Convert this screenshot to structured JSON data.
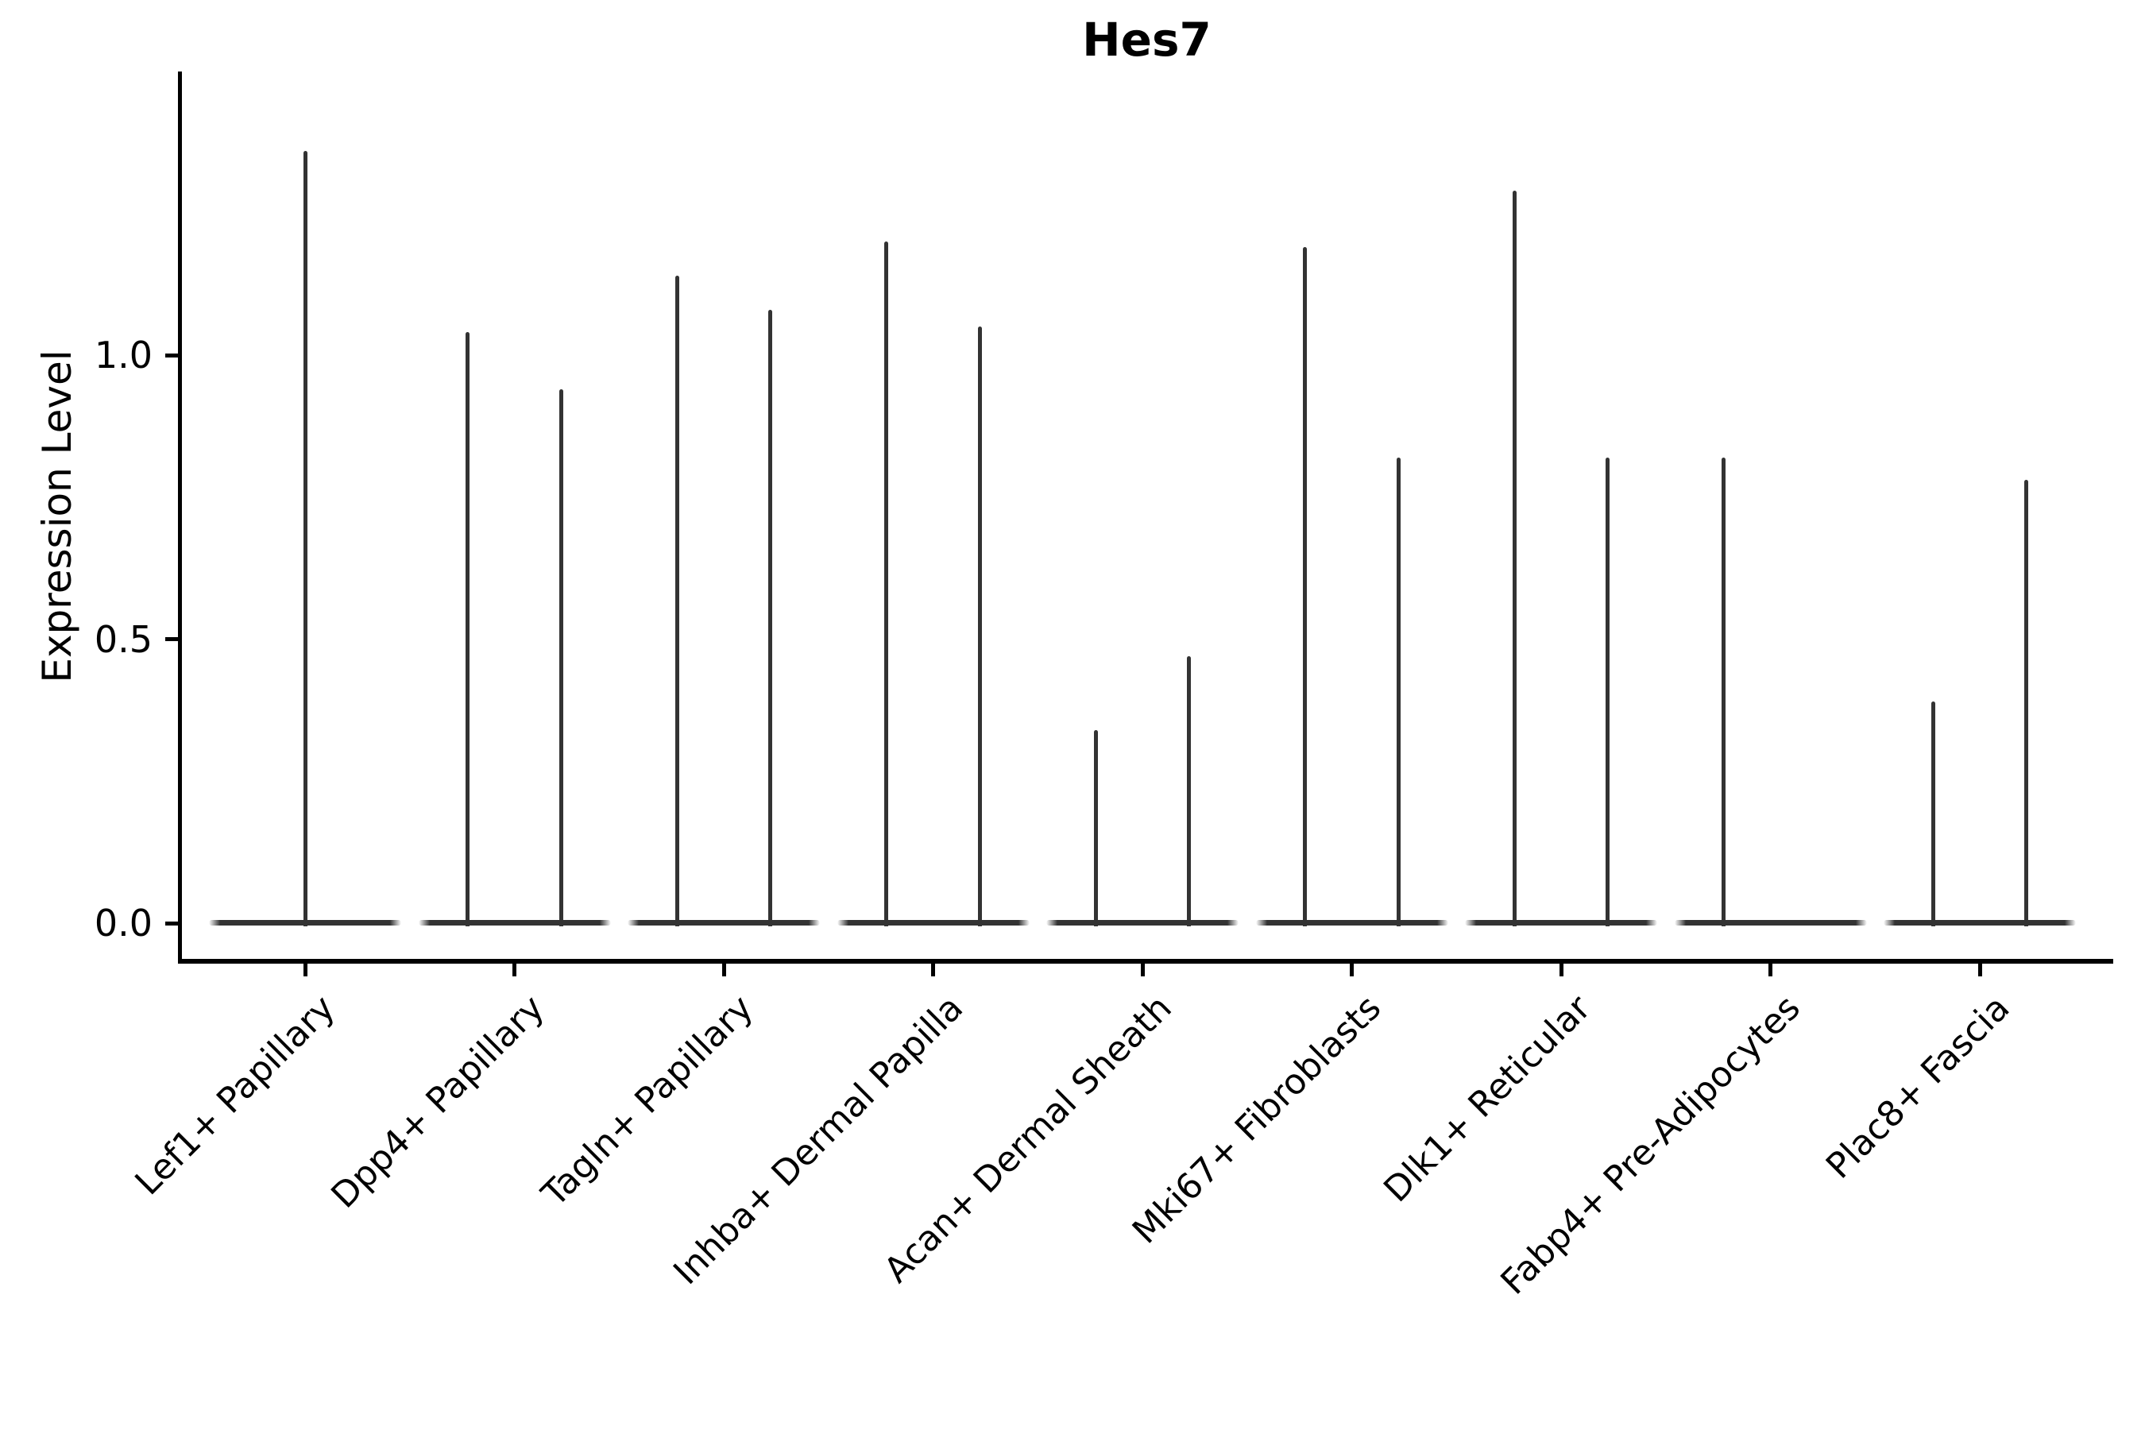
{
  "chart_data": {
    "type": "violin",
    "title": "Hes7",
    "ylabel": "Expression Level",
    "xlabel": "",
    "ytick_labels": [
      "0.0",
      "0.5",
      "1.0"
    ],
    "ytick_values": [
      0.0,
      0.5,
      1.0
    ],
    "ylim": [
      -0.07,
      1.5
    ],
    "grid": false,
    "legend": "none",
    "xtick_rotation": 45,
    "violin_color": "#333333",
    "axis_color": "#000000",
    "background_color": "#ffffff",
    "description": "Each violin has nearly all density at expression 0 (flat horizontal body) with a thin vertical spike up to its maximum value; most categories contain two violins (left/right) around the category tick.",
    "categories": [
      "Lef1+ Papillary",
      "Dpp4+ Papillary",
      "Tagln+ Papillary",
      "Inhba+ Dermal Papilla",
      "Acan+ Dermal Sheath",
      "Mki67+ Fibroblasts",
      "Dlk1+ Reticular",
      "Fabp4+ Pre-Adipocytes",
      "Plac8+ Fascia"
    ],
    "groups": [
      {
        "category": "Lef1+ Papillary",
        "violins": [
          {
            "offset": 0.0,
            "max": 1.36
          }
        ]
      },
      {
        "category": "Dpp4+ Papillary",
        "violins": [
          {
            "offset": -0.22,
            "max": 1.04
          },
          {
            "offset": 0.22,
            "max": 0.94
          }
        ]
      },
      {
        "category": "Tagln+ Papillary",
        "violins": [
          {
            "offset": -0.22,
            "max": 1.14
          },
          {
            "offset": 0.22,
            "max": 1.08
          }
        ]
      },
      {
        "category": "Inhba+ Dermal Papilla",
        "violins": [
          {
            "offset": -0.22,
            "max": 1.2
          },
          {
            "offset": 0.22,
            "max": 1.05
          }
        ]
      },
      {
        "category": "Acan+ Dermal Sheath",
        "violins": [
          {
            "offset": -0.22,
            "max": 0.34
          },
          {
            "offset": 0.22,
            "max": 0.47
          }
        ]
      },
      {
        "category": "Mki67+ Fibroblasts",
        "violins": [
          {
            "offset": -0.22,
            "max": 1.19
          },
          {
            "offset": 0.22,
            "max": 0.82
          }
        ]
      },
      {
        "category": "Dlk1+ Reticular",
        "violins": [
          {
            "offset": -0.22,
            "max": 1.29
          },
          {
            "offset": 0.22,
            "max": 0.82
          }
        ]
      },
      {
        "category": "Fabp4+ Pre-Adipocytes",
        "violins": [
          {
            "offset": -0.22,
            "max": 0.82
          },
          {
            "offset": 0.22,
            "max": 0.0
          }
        ]
      },
      {
        "category": "Plac8+ Fascia",
        "violins": [
          {
            "offset": -0.22,
            "max": 0.39
          },
          {
            "offset": 0.22,
            "max": 0.78
          }
        ]
      }
    ]
  }
}
